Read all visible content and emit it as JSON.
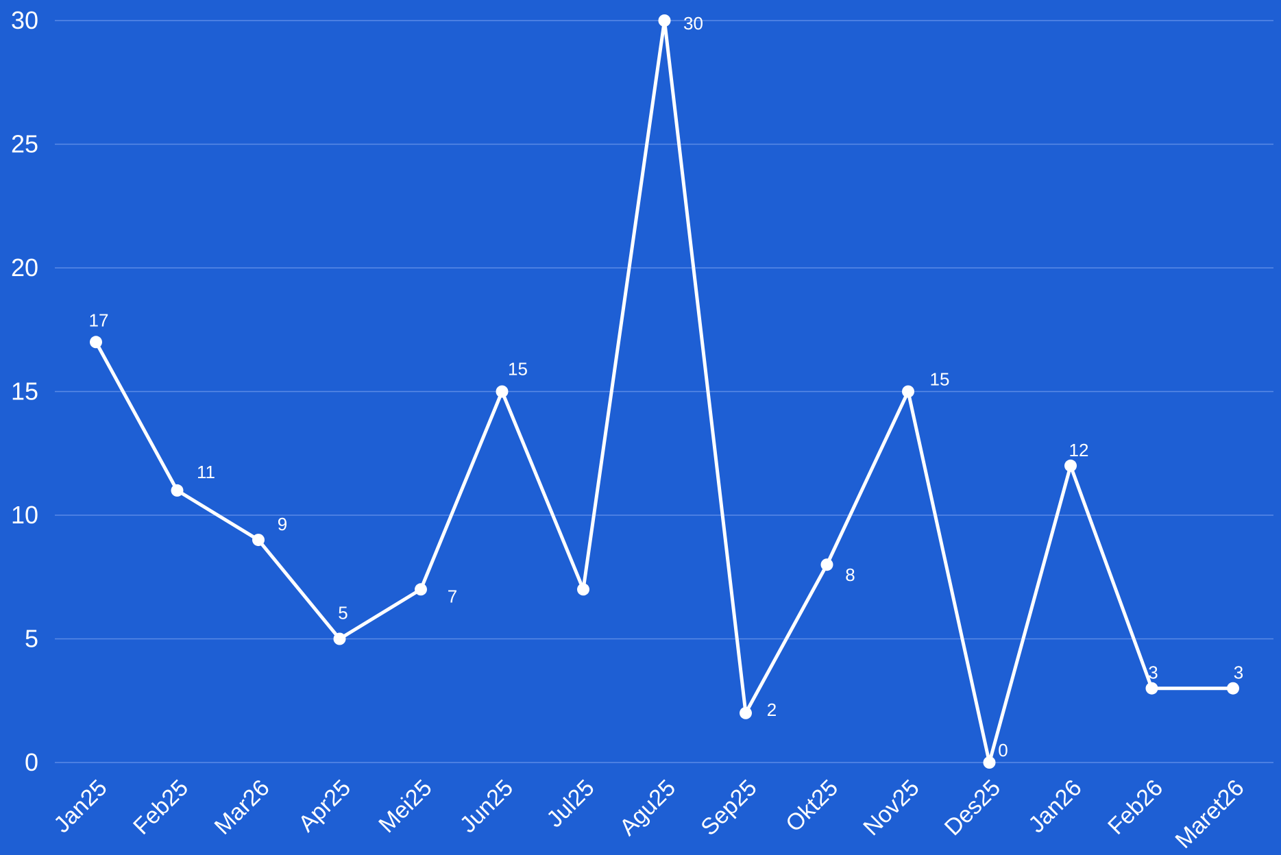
{
  "chart_data": {
    "type": "line",
    "categories": [
      "Jan25",
      "Feb25",
      "Mar26",
      "Apr25",
      "Mei25",
      "Jun25",
      "Jul25",
      "Agu25",
      "Sep25",
      "Okt25",
      "Nov25",
      "Des25",
      "Jan26",
      "Feb26",
      "Maret26"
    ],
    "series": [
      {
        "values": [
          17,
          11,
          9,
          5,
          7,
          15,
          7,
          30,
          2,
          8,
          15,
          0,
          12,
          3,
          3
        ],
        "data_labels": [
          "17",
          "11",
          "9",
          "5",
          "7",
          "15",
          "",
          "30",
          "2",
          "8",
          "15",
          "0",
          "12",
          "3",
          "3"
        ]
      }
    ],
    "yticks": [
      "0",
      "5",
      "10",
      "15",
      "20",
      "25",
      "30"
    ],
    "ylim": [
      0,
      30
    ],
    "grid": true,
    "legend": "none",
    "colors": {
      "background": "#1e5fd4",
      "line": "#ffffff",
      "grid": "#5a8ae6",
      "text": "#ffffff"
    }
  }
}
